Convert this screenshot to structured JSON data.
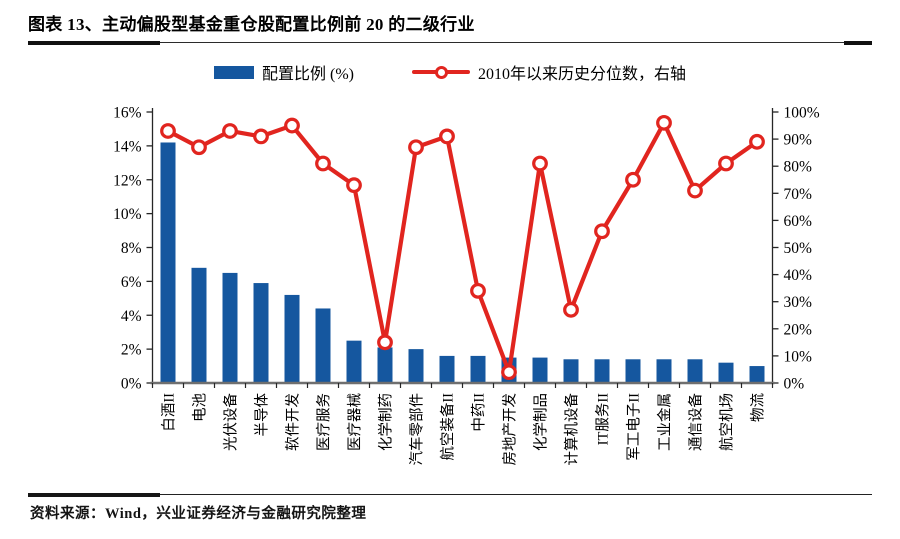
{
  "header": {
    "title": "图表 13、主动偏股型基金重仓股配置比例前 20 的二级行业"
  },
  "legend": [
    {
      "label": "配置比例 (%)",
      "type": "bar",
      "color": "#15579F"
    },
    {
      "label": "2010年以来历史分位数，右轴",
      "type": "line",
      "color": "#E1251F"
    }
  ],
  "footer": {
    "source": "资料来源：Wind，兴业证券经济与金融研究院整理"
  },
  "chart_data": {
    "type": "bar",
    "subtype": "bar+line dual axis",
    "title": "主动偏股型基金重仓股配置比例前 20 的二级行业",
    "categories": [
      "白酒II",
      "电池",
      "光伏设备",
      "半导体",
      "软件开发",
      "医疗服务",
      "医疗器械",
      "化学制药",
      "汽车零部件",
      "航空装备II",
      "中药II",
      "房地产开发",
      "化学制品",
      "计算机设备",
      "IT服务II",
      "军工电子II",
      "工业金属",
      "通信设备",
      "航空机场",
      "物流"
    ],
    "series": [
      {
        "name": "配置比例 (%)",
        "type": "bar",
        "axis": "left",
        "color": "#15579F",
        "values": [
          14.2,
          6.8,
          6.5,
          5.9,
          5.2,
          4.4,
          2.5,
          2.1,
          2.0,
          1.6,
          1.6,
          1.5,
          1.5,
          1.4,
          1.4,
          1.4,
          1.4,
          1.4,
          1.2,
          1.0
        ]
      },
      {
        "name": "2010年以来历史分位数，右轴",
        "type": "line",
        "axis": "right",
        "color": "#E1251F",
        "values": [
          93,
          87,
          93,
          91,
          95,
          81,
          73,
          15,
          87,
          91,
          34,
          4,
          81,
          27,
          56,
          75,
          96,
          71,
          81,
          89
        ]
      }
    ],
    "left_axis": {
      "min": 0,
      "max": 16,
      "step": 2,
      "ticks": [
        "0%",
        "2%",
        "4%",
        "6%",
        "8%",
        "10%",
        "12%",
        "14%",
        "16%"
      ]
    },
    "right_axis": {
      "min": 0,
      "max": 100,
      "step": 10,
      "ticks": [
        "0%",
        "10%",
        "20%",
        "30%",
        "40%",
        "50%",
        "60%",
        "70%",
        "80%",
        "90%",
        "100%"
      ]
    },
    "grid": false,
    "legend_position": "top",
    "x_label_rotation": -90
  }
}
